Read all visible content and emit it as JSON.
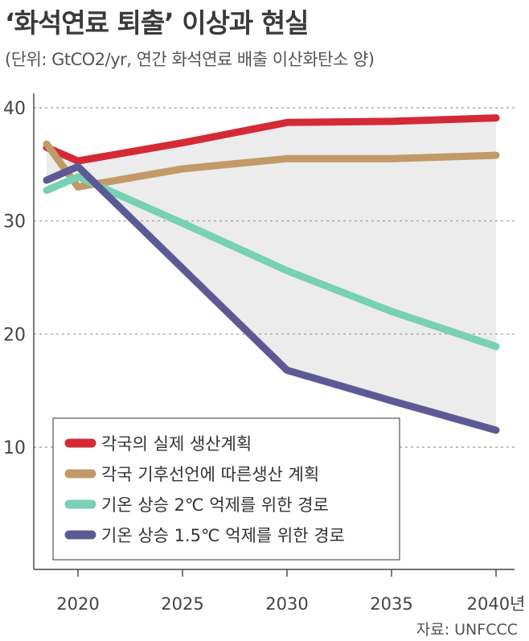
{
  "title": "‘화석연료 퇴출’ 이상과 현실",
  "subtitle": "(단위: GtCO2/yr, 연간 화석연료 배출 이산화탄소 양)",
  "source": "자료: UNFCCC",
  "chart_data": {
    "type": "line",
    "title": "‘화석연료 퇴출’ 이상과 현실",
    "ylabel": "GtCO2/yr",
    "ylim": [
      0,
      40
    ],
    "yticks": [
      10,
      20,
      30,
      40
    ],
    "ytick_labels": [
      "10",
      "20",
      "30",
      "40"
    ],
    "xlim": [
      2018.5,
      2040
    ],
    "xticks": [
      2020,
      2025,
      2030,
      2035,
      2040
    ],
    "xtick_labels": [
      "2020",
      "2025",
      "2030",
      "2035",
      "2040년"
    ],
    "grid": true,
    "legend_position": "bottom-left",
    "shaded_range": "between series 1 and series 4",
    "series": [
      {
        "name": "각국의 실제 생산계획",
        "color": "#d42a35",
        "x": [
          2018.5,
          2020,
          2025,
          2030,
          2035,
          2040
        ],
        "y": [
          36.5,
          35.3,
          36.9,
          38.7,
          38.8,
          39.1
        ]
      },
      {
        "name": "각국 기후선언에 따른생산 계획",
        "color": "#c19a67",
        "x": [
          2018.5,
          2020,
          2025,
          2030,
          2035,
          2040
        ],
        "y": [
          36.8,
          33.0,
          34.6,
          35.5,
          35.5,
          35.8
        ]
      },
      {
        "name": "기온 상승 2℃ 억제를 위한 경로",
        "color": "#78d0b5",
        "x": [
          2018.5,
          2020,
          2025,
          2030,
          2035,
          2040
        ],
        "y": [
          32.7,
          33.9,
          29.8,
          25.6,
          22.0,
          18.9
        ]
      },
      {
        "name": "기온 상승 1.5℃ 억제를 위한 경로",
        "color": "#5c5a95",
        "x": [
          2018.5,
          2020,
          2025,
          2030,
          2035,
          2040
        ],
        "y": [
          33.6,
          34.8,
          25.8,
          16.8,
          14.1,
          11.5
        ]
      }
    ]
  },
  "colors": {
    "band": "#ececec",
    "grid": "#999999",
    "axis": "#444444"
  }
}
